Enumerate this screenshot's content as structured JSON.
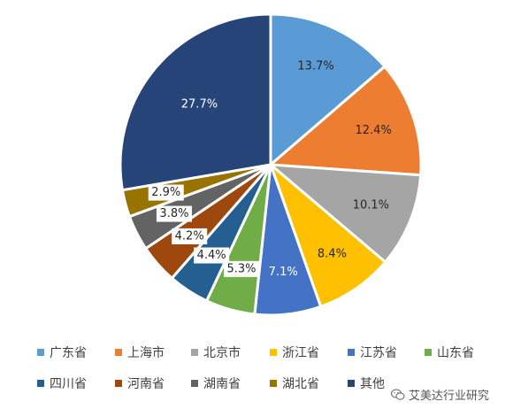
{
  "chart_data": {
    "type": "pie",
    "title": "",
    "start_angle_deg": 0,
    "direction": "clockwise",
    "slices": [
      {
        "label": "广东省",
        "value": 13.7,
        "display": "13.7%",
        "color": "#5b9bd5"
      },
      {
        "label": "上海市",
        "value": 12.4,
        "display": "12.4%",
        "color": "#ed7d31"
      },
      {
        "label": "北京市",
        "value": 10.1,
        "display": "10.1%",
        "color": "#a5a5a5"
      },
      {
        "label": "浙江省",
        "value": 8.4,
        "display": "8.4%",
        "color": "#ffc000"
      },
      {
        "label": "江苏省",
        "value": 7.1,
        "display": "7.1%",
        "color": "#4472c4"
      },
      {
        "label": "山东省",
        "value": 5.3,
        "display": "5.3%",
        "color": "#70ad47"
      },
      {
        "label": "四川省",
        "value": 4.4,
        "display": "4.4%",
        "color": "#255e91"
      },
      {
        "label": "河南省",
        "value": 4.2,
        "display": "4.2%",
        "color": "#9e480e"
      },
      {
        "label": "湖南省",
        "value": 3.8,
        "display": "3.8%",
        "color": "#636363"
      },
      {
        "label": "湖北省",
        "value": 2.9,
        "display": "2.9%",
        "color": "#997300"
      },
      {
        "label": "其他",
        "value": 27.7,
        "display": "27.7%",
        "color": "#264478"
      }
    ],
    "legend_position": "bottom"
  },
  "watermark": {
    "text": "艾美达行业研究",
    "icon": "wechat-icon"
  }
}
